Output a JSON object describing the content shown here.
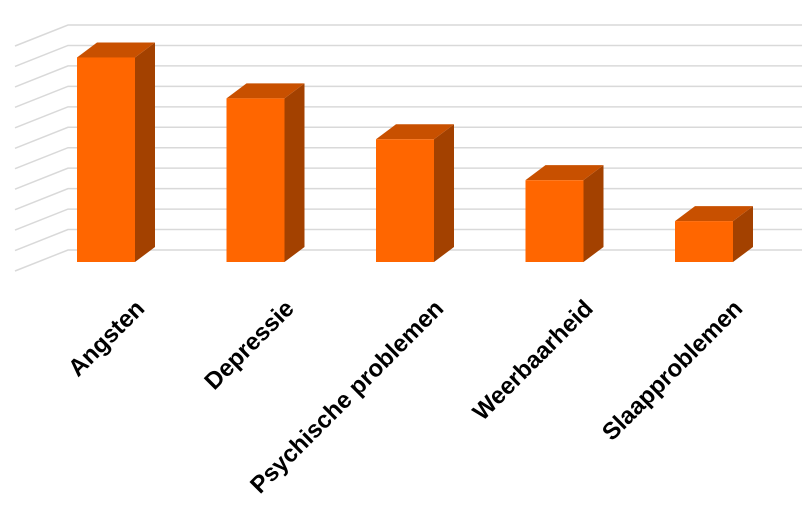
{
  "chart_data": {
    "type": "bar",
    "style": "3d-column",
    "categories": [
      "Angsten",
      "Depressie",
      "Psychische problemen",
      "Weerbaarheid",
      "Slaapproblemen"
    ],
    "values": [
      100,
      80,
      60,
      40,
      20
    ],
    "title": "",
    "xlabel": "",
    "ylabel": "",
    "ylim": [
      0,
      110
    ],
    "grid": true,
    "legend": "none",
    "colors": {
      "bar_front": "#ff6600",
      "bar_top": "#c85000",
      "bar_side": "#a34100",
      "grid": "#d9d9d9",
      "label": "#000000"
    }
  }
}
